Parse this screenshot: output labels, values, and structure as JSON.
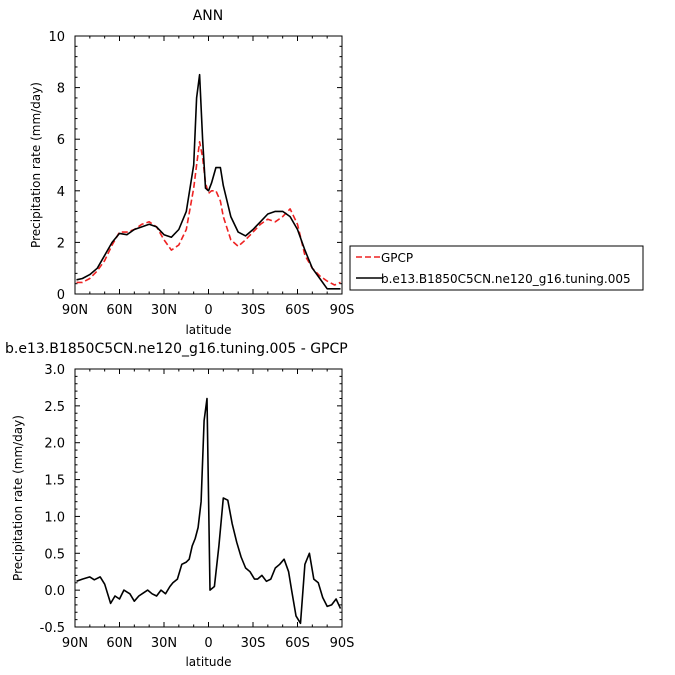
{
  "chart_data": [
    {
      "type": "line",
      "title": "ANN",
      "xlabel": "latitude",
      "ylabel": "Precipitation rate (mm/day)",
      "xlim": [
        90,
        -90
      ],
      "ylim": [
        0,
        10
      ],
      "x_ticks": [
        90,
        60,
        30,
        0,
        -30,
        -60,
        -90
      ],
      "x_tick_labels": [
        "90N",
        "60N",
        "30N",
        "0",
        "30S",
        "60S",
        "90S"
      ],
      "y_ticks": [
        0,
        2,
        4,
        6,
        8,
        10
      ],
      "y_tick_labels": [
        "0",
        "2",
        "4",
        "6",
        "8",
        "10"
      ],
      "legend": {
        "position": "right"
      },
      "series": [
        {
          "name": "GPCP",
          "color": "#ee2222",
          "dash": "dashed",
          "x": [
            89,
            85,
            80,
            75,
            70,
            65,
            60,
            55,
            50,
            45,
            40,
            35,
            30,
            25,
            20,
            15,
            10,
            8,
            6,
            4,
            2,
            0,
            -2,
            -5,
            -8,
            -10,
            -15,
            -20,
            -25,
            -30,
            -35,
            -40,
            -45,
            -50,
            -55,
            -60,
            -65,
            -70,
            -75,
            -80,
            -85,
            -89
          ],
          "values": [
            0.45,
            0.45,
            0.6,
            0.9,
            1.3,
            1.9,
            2.4,
            2.4,
            2.5,
            2.7,
            2.8,
            2.6,
            2.1,
            1.7,
            1.9,
            2.5,
            4.1,
            5.0,
            5.9,
            5.3,
            4.3,
            3.9,
            4.0,
            4.0,
            3.6,
            3.0,
            2.1,
            1.85,
            2.1,
            2.4,
            2.7,
            2.9,
            2.8,
            3.0,
            3.3,
            2.7,
            1.5,
            1.0,
            0.7,
            0.5,
            0.35,
            0.45
          ]
        },
        {
          "name": "b.e13.B1850C5CN.ne120_g16.tuning.005",
          "color": "#000000",
          "dash": "solid",
          "x": [
            89,
            85,
            80,
            75,
            70,
            65,
            60,
            55,
            50,
            45,
            40,
            35,
            30,
            25,
            20,
            15,
            10,
            8,
            6,
            4,
            2,
            0,
            -2,
            -5,
            -8,
            -10,
            -15,
            -20,
            -25,
            -30,
            -35,
            -40,
            -45,
            -50,
            -55,
            -60,
            -65,
            -70,
            -75,
            -80,
            -85,
            -89
          ],
          "values": [
            0.55,
            0.6,
            0.75,
            1.0,
            1.5,
            2.0,
            2.35,
            2.3,
            2.5,
            2.6,
            2.7,
            2.6,
            2.3,
            2.2,
            2.5,
            3.2,
            5.0,
            7.6,
            8.5,
            6.0,
            4.1,
            4.0,
            4.3,
            4.9,
            4.9,
            4.2,
            3.0,
            2.4,
            2.25,
            2.5,
            2.8,
            3.1,
            3.2,
            3.2,
            3.0,
            2.5,
            1.7,
            1.0,
            0.6,
            0.2,
            0.2,
            0.2
          ]
        }
      ]
    },
    {
      "type": "line",
      "title": "b.e13.B1850C5CN.ne120_g16.tuning.005 - GPCP",
      "xlabel": "latitude",
      "ylabel": "Precipitation rate (mm/day)",
      "xlim": [
        90,
        -90
      ],
      "ylim": [
        -0.5,
        3.0
      ],
      "x_ticks": [
        90,
        60,
        30,
        0,
        -30,
        -60,
        -90
      ],
      "x_tick_labels": [
        "90N",
        "60N",
        "30N",
        "0",
        "30S",
        "60S",
        "90S"
      ],
      "y_ticks": [
        -0.5,
        0.0,
        0.5,
        1.0,
        1.5,
        2.0,
        2.5,
        3.0
      ],
      "y_tick_labels": [
        "-0.5",
        "0.0",
        "0.5",
        "1.0",
        "1.5",
        "2.0",
        "2.5",
        "3.0"
      ],
      "series": [
        {
          "color": "#000000",
          "x": [
            89,
            85,
            80,
            77,
            73,
            70,
            66,
            63,
            60,
            57,
            53,
            50,
            47,
            44,
            41,
            38,
            35,
            32,
            29,
            26,
            24,
            21,
            18,
            15,
            13,
            11,
            9,
            7,
            5,
            3,
            1,
            -1,
            -4,
            -7,
            -10,
            -13,
            -16,
            -19,
            -22,
            -25,
            -28,
            -31,
            -33,
            -36,
            -39,
            -42,
            -45,
            -48,
            -51,
            -54,
            -56,
            -59,
            -62,
            -65,
            -68,
            -71,
            -74,
            -77,
            -80,
            -83,
            -86,
            -89
          ],
          "values": [
            0.12,
            0.15,
            0.18,
            0.14,
            0.18,
            0.08,
            -0.18,
            -0.08,
            -0.12,
            0.0,
            -0.05,
            -0.15,
            -0.08,
            -0.04,
            0.0,
            -0.05,
            -0.08,
            0.0,
            -0.05,
            0.05,
            0.1,
            0.15,
            0.35,
            0.38,
            0.42,
            0.6,
            0.7,
            0.85,
            1.2,
            2.3,
            2.6,
            0.0,
            0.05,
            0.6,
            1.25,
            1.22,
            0.9,
            0.65,
            0.45,
            0.3,
            0.25,
            0.15,
            0.15,
            0.2,
            0.12,
            0.15,
            0.3,
            0.35,
            0.42,
            0.25,
            0.0,
            -0.35,
            -0.45,
            0.35,
            0.5,
            0.15,
            0.1,
            -0.1,
            -0.22,
            -0.2,
            -0.12,
            -0.25
          ]
        }
      ]
    }
  ]
}
